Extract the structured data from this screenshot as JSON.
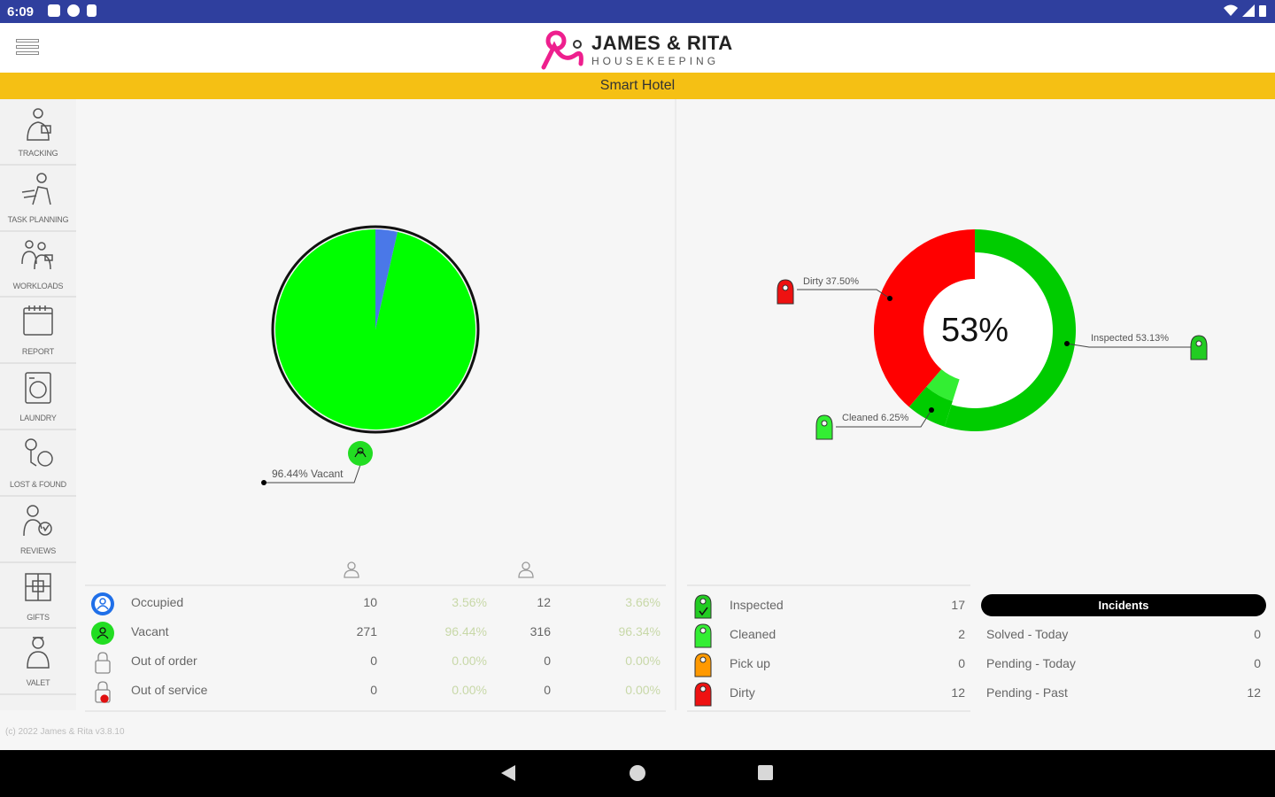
{
  "status_bar": {
    "time": "6:09"
  },
  "header": {
    "brand": "JAMES & RITA",
    "subtitle": "HOUSEKEEPING"
  },
  "hotel": {
    "name": "Smart Hotel"
  },
  "sidebar": {
    "items": [
      {
        "label": "TRACKING",
        "icon": "tracking-icon"
      },
      {
        "label": "TASK PLANNING",
        "icon": "task-planning-icon"
      },
      {
        "label": "WORKLOADS",
        "icon": "workloads-icon"
      },
      {
        "label": "REPORT",
        "icon": "report-icon"
      },
      {
        "label": "LAUNDRY",
        "icon": "laundry-icon"
      },
      {
        "label": "LOST & FOUND",
        "icon": "lost-found-icon"
      },
      {
        "label": "REVIEWS",
        "icon": "reviews-icon"
      },
      {
        "label": "GIFTS",
        "icon": "gifts-icon"
      },
      {
        "label": "VALET",
        "icon": "valet-icon"
      }
    ]
  },
  "occupancy_chart": {
    "vacant_label": "96.44% Vacant"
  },
  "status_chart": {
    "center_label": "53%",
    "dirty_label": "Dirty 37.50%",
    "inspected_label": "Inspected 53.13%",
    "cleaned_label": "Cleaned 6.25%"
  },
  "chart_data": [
    {
      "type": "pie",
      "title": "",
      "categories": [
        "Vacant",
        "Occupied"
      ],
      "values": [
        96.44,
        3.56
      ],
      "colors": [
        "#00ff00",
        "#4a78e8"
      ]
    },
    {
      "type": "pie",
      "title": "53%",
      "categories": [
        "Inspected",
        "Dirty",
        "Cleaned",
        "Pick up"
      ],
      "values": [
        53.13,
        37.5,
        6.25,
        0
      ],
      "colors": [
        "#00cc00",
        "#ff0000",
        "#33ee33",
        "#ff9900"
      ]
    }
  ],
  "occupancy_table": {
    "rows": [
      {
        "name": "Occupied",
        "v1": "10",
        "p1": "3.56%",
        "v2": "12",
        "p2": "3.66%",
        "icon": "occupied-person-icon"
      },
      {
        "name": "Vacant",
        "v1": "271",
        "p1": "96.44%",
        "v2": "316",
        "p2": "96.34%",
        "icon": "vacant-person-icon"
      },
      {
        "name": "Out of order",
        "v1": "0",
        "p1": "0.00%",
        "v2": "0",
        "p2": "0.00%",
        "icon": "out-of-order-lock-icon"
      },
      {
        "name": "Out of service",
        "v1": "0",
        "p1": "0.00%",
        "v2": "0",
        "p2": "0.00%",
        "icon": "out-of-service-lock-icon"
      }
    ]
  },
  "housekeeping_table": {
    "rows": [
      {
        "name": "Inspected",
        "value": "17",
        "color": "#22cc22"
      },
      {
        "name": "Cleaned",
        "value": "2",
        "color": "#33ee33"
      },
      {
        "name": "Pick up",
        "value": "0",
        "color": "#ff9900"
      },
      {
        "name": "Dirty",
        "value": "12",
        "color": "#ee1111"
      }
    ]
  },
  "incidents": {
    "title": "Incidents",
    "rows": [
      {
        "name": "Solved - Today",
        "value": "0"
      },
      {
        "name": "Pending - Today",
        "value": "0"
      },
      {
        "name": "Pending - Past",
        "value": "12"
      }
    ]
  },
  "footer": {
    "copyright": "(c) 2022 James & Rita v3.8.10"
  },
  "colors": {
    "accent_bar": "#f5c014",
    "status_bar": "#2f3f9e",
    "brand_pink": "#ee1f8e"
  }
}
